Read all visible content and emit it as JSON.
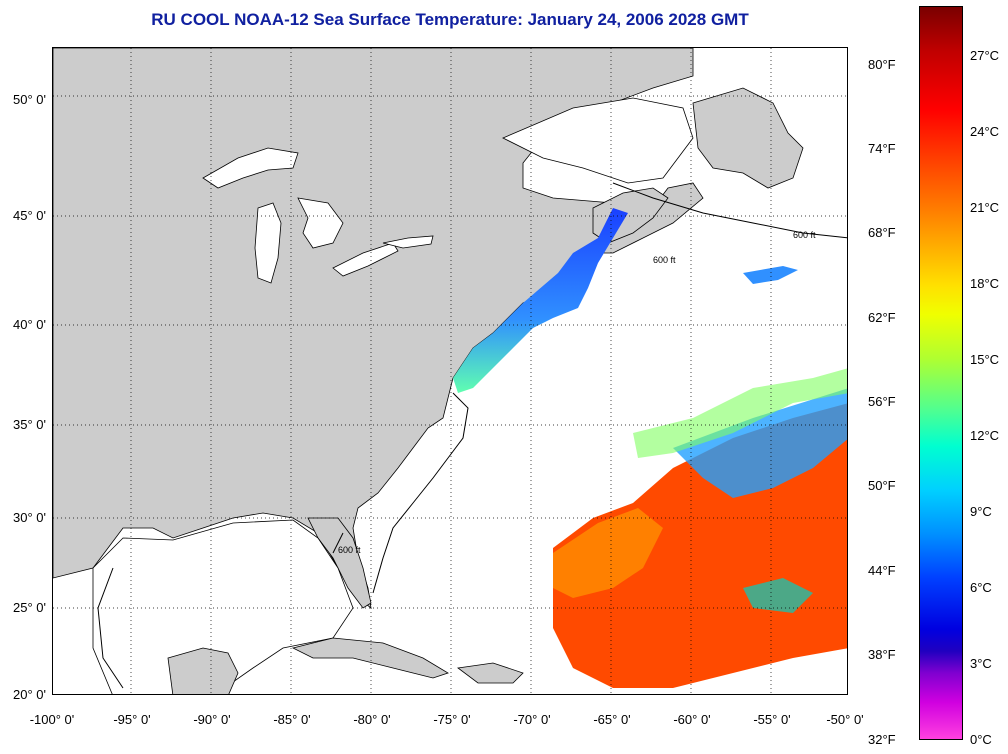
{
  "title": "RU COOL  NOAA-12  Sea Surface Temperature:  January 24, 2006 2028 GMT",
  "latitude_labels": [
    "50° 0'",
    "45° 0'",
    "40° 0'",
    "35° 0'",
    "30° 0'",
    "25° 0'",
    "20° 0'"
  ],
  "longitude_labels": [
    "-100° 0'",
    "-95° 0'",
    "-90° 0'",
    "-85° 0'",
    "-80° 0'",
    "-75° 0'",
    "-70° 0'",
    "-65° 0'",
    "-60° 0'",
    "-55° 0'",
    "-50° 0'"
  ],
  "colorbar": {
    "fahrenheit": [
      "80°F",
      "74°F",
      "68°F",
      "62°F",
      "56°F",
      "50°F",
      "44°F",
      "38°F",
      "32°F"
    ],
    "celsius": [
      "27°C",
      "24°C",
      "21°C",
      "18°C",
      "15°C",
      "12°C",
      "9°C",
      "6°C",
      "3°C",
      "0°C"
    ]
  },
  "contours": {
    "depth_label": "600 ft"
  },
  "colors": {
    "title": "#1020a0",
    "land": "#cccccc",
    "ocean_nodata": "#ffffff",
    "warm": "#ff4a00",
    "cold": "#1050ff"
  }
}
